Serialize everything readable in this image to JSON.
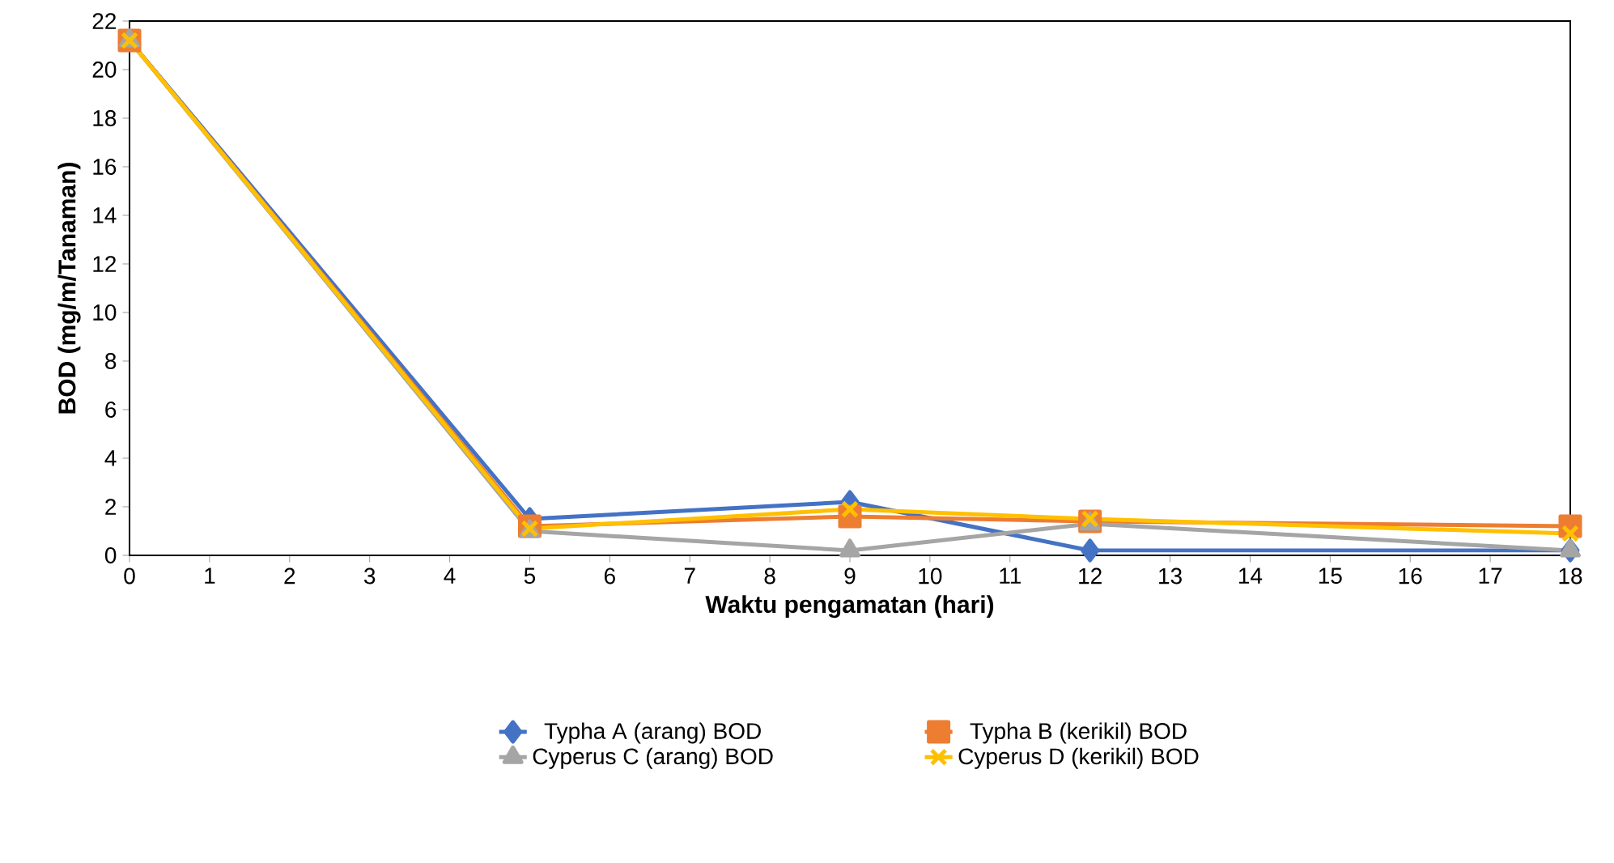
{
  "chart_data": {
    "type": "line",
    "xlabel": "Waktu pengamatan (hari)",
    "ylabel": "BOD (mg/m/Tanaman)",
    "x": [
      0,
      5,
      9,
      12,
      18
    ],
    "xlim": [
      0,
      18
    ],
    "xticks": [
      0,
      1,
      2,
      3,
      4,
      5,
      6,
      7,
      8,
      9,
      10,
      11,
      12,
      13,
      14,
      15,
      16,
      17,
      18
    ],
    "ylim": [
      0,
      22
    ],
    "yticks": [
      0,
      2,
      4,
      6,
      8,
      10,
      12,
      14,
      16,
      18,
      20,
      22
    ],
    "grid": false,
    "legend": "bottom",
    "series": [
      {
        "name": "Typha A (arang) BOD",
        "color": "#4472c4",
        "marker": "diamond",
        "values": [
          21.2,
          1.5,
          2.2,
          0.2,
          0.2
        ]
      },
      {
        "name": "Typha B (kerikil) BOD",
        "color": "#ed7d31",
        "marker": "square",
        "values": [
          21.2,
          1.2,
          1.6,
          1.4,
          1.2
        ]
      },
      {
        "name": "Cyperus C (arang) BOD",
        "color": "#a5a5a5",
        "marker": "triangle",
        "values": [
          21.2,
          1.0,
          0.2,
          1.3,
          0.2
        ]
      },
      {
        "name": "Cyperus D (kerikil)  BOD",
        "color": "#ffc000",
        "marker": "cross",
        "values": [
          21.2,
          1.1,
          1.9,
          1.5,
          0.9
        ]
      }
    ]
  }
}
